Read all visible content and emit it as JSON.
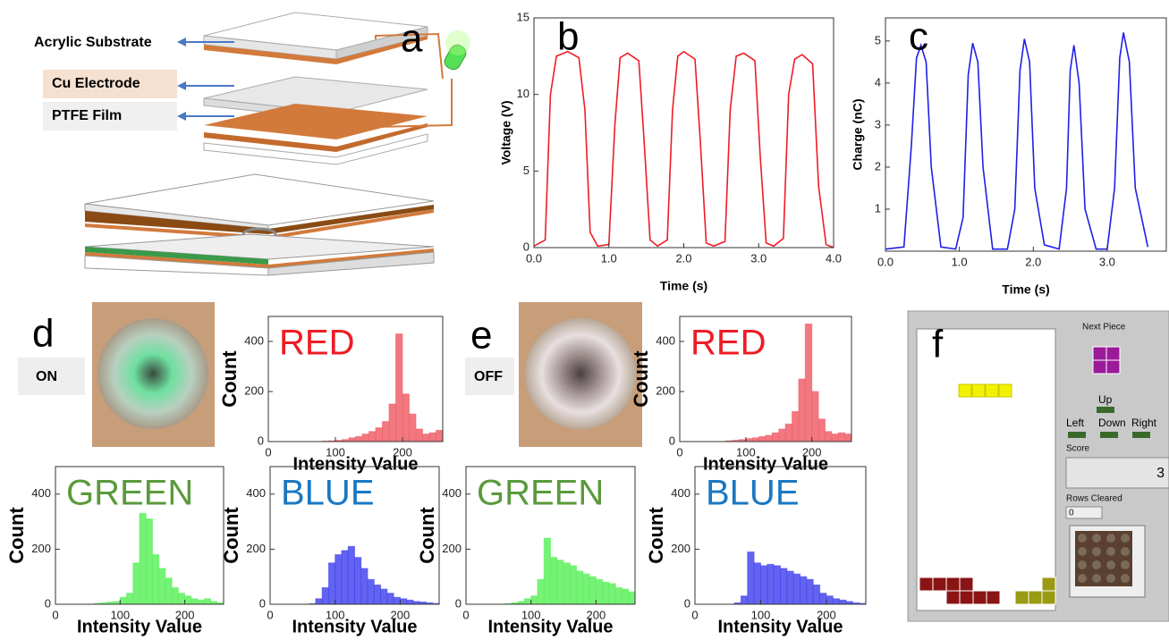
{
  "chart_data": [
    {
      "type": "line",
      "panel_label": "b",
      "xlabel": "Time (s)",
      "ylabel": "Voltage (V)",
      "color": "#ee1c25",
      "x": [
        0,
        0.15,
        0.22,
        0.3,
        0.45,
        0.6,
        0.68,
        0.75,
        0.85,
        1.0,
        1.08,
        1.15,
        1.25,
        1.4,
        1.47,
        1.55,
        1.65,
        1.78,
        1.85,
        1.92,
        2.0,
        2.15,
        2.22,
        2.3,
        2.4,
        2.55,
        2.62,
        2.7,
        2.8,
        2.95,
        3.02,
        3.1,
        3.2,
        3.33,
        3.4,
        3.48,
        3.58,
        3.72,
        3.8,
        3.9,
        4.0
      ],
      "values": [
        0.1,
        0.5,
        10,
        12.5,
        12.8,
        12.4,
        9,
        1,
        0.1,
        0.2,
        8,
        12.4,
        12.7,
        12.2,
        7,
        0.5,
        0.1,
        0.5,
        9,
        12.5,
        12.8,
        12.3,
        7,
        0.3,
        0.1,
        0.4,
        9,
        12.5,
        12.7,
        12.2,
        6,
        0.3,
        0.1,
        0.6,
        10,
        12.3,
        12.6,
        12,
        4,
        0.2,
        0
      ],
      "xlim": [
        0,
        4
      ],
      "xticks": [
        {
          "value": 0,
          "label": "0.0"
        },
        {
          "value": 1,
          "label": "1.0"
        },
        {
          "value": 2,
          "label": "2.0"
        },
        {
          "value": 3,
          "label": "3.0"
        },
        {
          "value": 4,
          "label": "4.0"
        }
      ],
      "ylim": [
        0,
        15
      ],
      "yticks": [
        0,
        5,
        10,
        15
      ]
    },
    {
      "type": "line",
      "panel_label": "c",
      "xlabel": "Time (s)",
      "ylabel": "Charge (nC)",
      "color": "#1f1fe6",
      "x": [
        0,
        0.25,
        0.35,
        0.42,
        0.48,
        0.55,
        0.62,
        0.75,
        0.95,
        1.05,
        1.12,
        1.18,
        1.25,
        1.32,
        1.45,
        1.65,
        1.75,
        1.82,
        1.88,
        1.95,
        2.02,
        2.15,
        2.35,
        2.45,
        2.5,
        2.55,
        2.62,
        2.7,
        2.85,
        3.0,
        3.1,
        3.17,
        3.22,
        3.3,
        3.38,
        3.55
      ],
      "values": [
        0.05,
        0.1,
        2.5,
        4.6,
        4.9,
        4.5,
        2,
        0.1,
        0.05,
        0.8,
        4.2,
        4.95,
        4.5,
        2,
        0.05,
        0.05,
        1,
        4.3,
        5.05,
        4.5,
        1.5,
        0.15,
        0.05,
        1.5,
        4.3,
        4.9,
        4,
        1,
        0.05,
        0.05,
        1.5,
        4.6,
        5.2,
        4.5,
        1.5,
        0.1
      ],
      "xlim": [
        0,
        3.8
      ],
      "xticks": [
        {
          "value": 0,
          "label": "0.0"
        },
        {
          "value": 1,
          "label": "1.0"
        },
        {
          "value": 2,
          "label": "2.0"
        },
        {
          "value": 3,
          "label": "3.0"
        }
      ],
      "ylim": [
        0,
        5.55
      ],
      "yticks": [
        1,
        2,
        3,
        4,
        5
      ]
    },
    {
      "type": "histogram",
      "title": "RED",
      "title_color": "#ee1c25",
      "color": "#f0606a",
      "xlabel": "Intensity Value",
      "ylabel": "Count",
      "bins": [
        60,
        70,
        80,
        90,
        100,
        110,
        120,
        130,
        140,
        150,
        160,
        170,
        180,
        190,
        200,
        210,
        220,
        230,
        240,
        250,
        260
      ],
      "values": [
        0,
        0,
        2,
        3,
        5,
        8,
        15,
        20,
        30,
        40,
        55,
        80,
        150,
        430,
        190,
        110,
        50,
        30,
        35,
        45
      ],
      "xlim": [
        0,
        260
      ],
      "xticks": [
        0,
        100,
        200
      ],
      "ylim": [
        0,
        500
      ],
      "yticks": [
        0,
        200,
        400
      ]
    },
    {
      "type": "histogram",
      "title": "GREEN",
      "title_color": "#5a9a3c",
      "color": "#5ef05e",
      "xlabel": "Intensity Value",
      "ylabel": "Count",
      "bins": [
        60,
        70,
        80,
        90,
        100,
        110,
        120,
        130,
        140,
        150,
        160,
        170,
        180,
        190,
        200,
        210,
        220,
        230,
        240,
        250,
        260
      ],
      "values": [
        3,
        5,
        8,
        10,
        25,
        40,
        150,
        330,
        310,
        180,
        130,
        95,
        60,
        40,
        30,
        20,
        15,
        20,
        10,
        5
      ],
      "xlim": [
        0,
        260
      ],
      "xticks": [
        0,
        100,
        200
      ],
      "ylim": [
        0,
        500
      ],
      "yticks": [
        0,
        200,
        400
      ]
    },
    {
      "type": "histogram",
      "title": "BLUE",
      "title_color": "#1a78c2",
      "color": "#4848ee",
      "xlabel": "Intensity Value",
      "ylabel": "Count",
      "bins": [
        60,
        70,
        80,
        90,
        100,
        110,
        120,
        130,
        140,
        150,
        160,
        170,
        180,
        190,
        200,
        210,
        220,
        230,
        240,
        250,
        260
      ],
      "values": [
        2,
        20,
        60,
        150,
        180,
        195,
        210,
        170,
        130,
        90,
        70,
        55,
        40,
        25,
        20,
        15,
        10,
        8,
        5,
        3
      ],
      "xlim": [
        0,
        260
      ],
      "xticks": [
        0,
        100,
        200
      ],
      "ylim": [
        0,
        500
      ],
      "yticks": [
        0,
        200,
        400
      ]
    },
    {
      "type": "histogram",
      "title": "RED",
      "title_color": "#ee1c25",
      "color": "#f0606a",
      "xlabel": "Intensity Value",
      "ylabel": "Count",
      "bins": [
        60,
        70,
        80,
        90,
        100,
        110,
        120,
        130,
        140,
        150,
        160,
        170,
        180,
        190,
        200,
        210,
        220,
        230,
        240,
        250,
        260
      ],
      "values": [
        0,
        3,
        5,
        8,
        12,
        15,
        20,
        25,
        35,
        50,
        70,
        120,
        250,
        470,
        200,
        90,
        40,
        30,
        35,
        30
      ],
      "xlim": [
        0,
        260
      ],
      "xticks": [
        0,
        100,
        200
      ],
      "ylim": [
        0,
        500
      ],
      "yticks": [
        0,
        200,
        400
      ]
    },
    {
      "type": "histogram",
      "title": "GREEN",
      "title_color": "#5a9a3c",
      "color": "#5ef05e",
      "xlabel": "Intensity Value",
      "ylabel": "Count",
      "bins": [
        60,
        70,
        80,
        90,
        100,
        110,
        120,
        130,
        140,
        150,
        160,
        170,
        180,
        190,
        200,
        210,
        220,
        230,
        240,
        250,
        260
      ],
      "values": [
        2,
        5,
        10,
        20,
        30,
        90,
        240,
        170,
        160,
        150,
        140,
        120,
        110,
        100,
        90,
        80,
        75,
        60,
        55,
        45
      ],
      "xlim": [
        0,
        260
      ],
      "xticks": [
        0,
        100,
        200
      ],
      "ylim": [
        0,
        500
      ],
      "yticks": [
        0,
        200,
        400
      ]
    },
    {
      "type": "histogram",
      "title": "BLUE",
      "title_color": "#1a78c2",
      "color": "#4848ee",
      "xlabel": "Intensity Value",
      "ylabel": "Count",
      "bins": [
        60,
        70,
        80,
        90,
        100,
        110,
        120,
        130,
        140,
        150,
        160,
        170,
        180,
        190,
        200,
        210,
        220,
        230,
        240,
        250,
        260
      ],
      "values": [
        5,
        30,
        190,
        150,
        140,
        145,
        140,
        130,
        120,
        110,
        100,
        90,
        70,
        40,
        30,
        20,
        15,
        10,
        5,
        3
      ],
      "xlim": [
        0,
        260
      ],
      "xticks": [
        0,
        100,
        200
      ],
      "ylim": [
        0,
        500
      ],
      "yticks": [
        0,
        200,
        400
      ]
    }
  ],
  "diagram": {
    "panel_label": "a",
    "layers": [
      "Acrylic  Substrate",
      "Cu Electrode",
      "PTFE Film"
    ]
  },
  "photos": [
    {
      "panel_label": "d",
      "state": "ON"
    },
    {
      "panel_label": "e",
      "state": "OFF"
    }
  ],
  "game": {
    "panel_label": "f",
    "next_piece_label": "Next Piece",
    "buttons": [
      "Up",
      "Left",
      "Down",
      "Right"
    ],
    "score_label": "Score",
    "score": 3,
    "rows_cleared_label": "Rows Cleared",
    "rows_cleared": 0
  }
}
